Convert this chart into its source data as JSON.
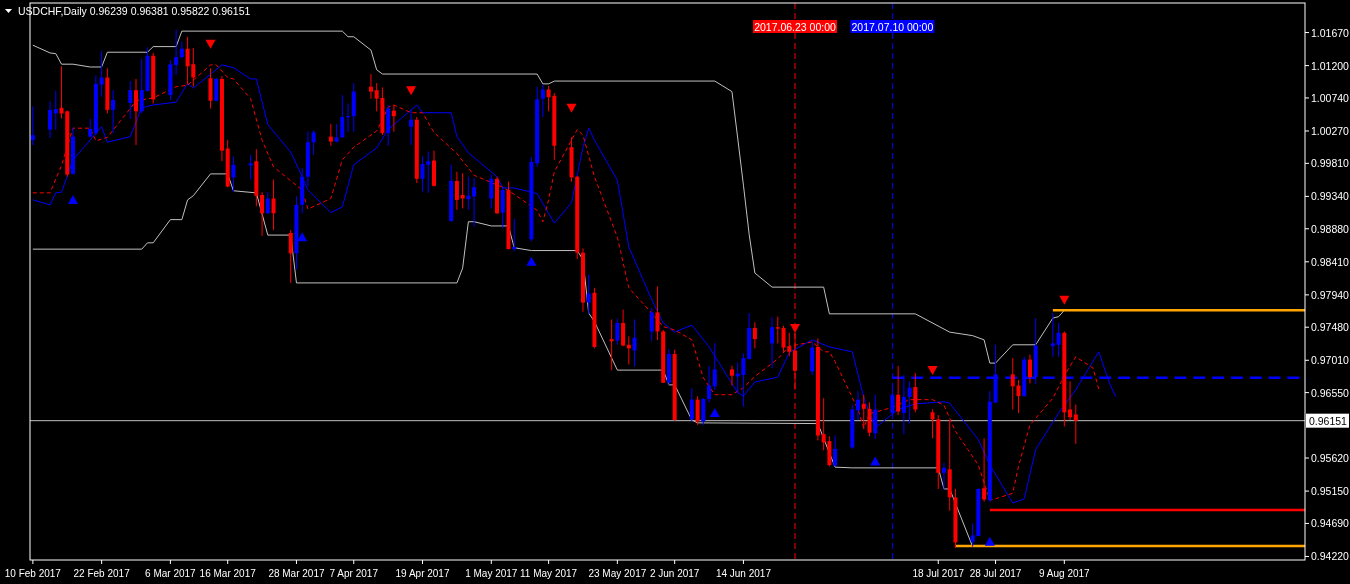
{
  "chart_data": {
    "type": "candlestick",
    "title": "USDCHF,Daily 0.96239 0.96381 0.95822 0.96151",
    "x": [
      "2017-02-10",
      "2017-02-13",
      "2017-02-14",
      "2017-02-15",
      "2017-02-16",
      "2017-02-17",
      "2017-02-20",
      "2017-02-21",
      "2017-02-22",
      "2017-02-23",
      "2017-02-24",
      "2017-02-27",
      "2017-02-28",
      "2017-03-01",
      "2017-03-02",
      "2017-03-03",
      "2017-03-06",
      "2017-03-07",
      "2017-03-08",
      "2017-03-09",
      "2017-03-10",
      "2017-03-13",
      "2017-03-14",
      "2017-03-15",
      "2017-03-16",
      "2017-03-17",
      "2017-03-20",
      "2017-03-21",
      "2017-03-22",
      "2017-03-23",
      "2017-03-24",
      "2017-03-27",
      "2017-03-28",
      "2017-03-29",
      "2017-03-30",
      "2017-03-31",
      "2017-04-03",
      "2017-04-04",
      "2017-04-05",
      "2017-04-06",
      "2017-04-07",
      "2017-04-10",
      "2017-04-11",
      "2017-04-12",
      "2017-04-13",
      "2017-04-14",
      "2017-04-17",
      "2017-04-18",
      "2017-04-19",
      "2017-04-20",
      "2017-04-21",
      "2017-04-24",
      "2017-04-25",
      "2017-04-26",
      "2017-04-27",
      "2017-04-28",
      "2017-05-01",
      "2017-05-02",
      "2017-05-03",
      "2017-05-04",
      "2017-05-05",
      "2017-05-08",
      "2017-05-09",
      "2017-05-10",
      "2017-05-11",
      "2017-05-12",
      "2017-05-15",
      "2017-05-16",
      "2017-05-17",
      "2017-05-18",
      "2017-05-19",
      "2017-05-22",
      "2017-05-23",
      "2017-05-24",
      "2017-05-25",
      "2017-05-26",
      "2017-05-29",
      "2017-05-30",
      "2017-05-31",
      "2017-06-01",
      "2017-06-02",
      "2017-06-05",
      "2017-06-06",
      "2017-06-07",
      "2017-06-08",
      "2017-06-09",
      "2017-06-12",
      "2017-06-13",
      "2017-06-14",
      "2017-06-15",
      "2017-06-16",
      "2017-06-19",
      "2017-06-20",
      "2017-06-21",
      "2017-06-22",
      "2017-06-23",
      "2017-06-26",
      "2017-06-27",
      "2017-06-28",
      "2017-06-29",
      "2017-06-30",
      "2017-07-03",
      "2017-07-04",
      "2017-07-05",
      "2017-07-06",
      "2017-07-07",
      "2017-07-10",
      "2017-07-11",
      "2017-07-12",
      "2017-07-13",
      "2017-07-14",
      "2017-07-17",
      "2017-07-18",
      "2017-07-19",
      "2017-07-20",
      "2017-07-21",
      "2017-07-24",
      "2017-07-25",
      "2017-07-26",
      "2017-07-27",
      "2017-07-28",
      "2017-07-31",
      "2017-08-01",
      "2017-08-02",
      "2017-08-03",
      "2017-08-04",
      "2017-08-07",
      "2017-08-08",
      "2017-08-09",
      "2017-08-10",
      "2017-08-11"
    ],
    "ohlc": [
      [
        1.0014,
        1.0062,
        1.0007,
        1.0021
      ],
      [
        1.0029,
        1.0069,
        1.0017,
        1.0057
      ],
      [
        1.0052,
        1.0084,
        1.0029,
        1.0058
      ],
      [
        1.006,
        1.0119,
        1.0045,
        1.0052
      ],
      [
        1.0055,
        1.0056,
        0.9962,
        0.9965
      ],
      [
        0.9966,
        1.0032,
        0.9965,
        1.0019
      ],
      [
        1.0019,
        1.0044,
        1.0018,
        1.003
      ],
      [
        1.0024,
        1.0106,
        1.0021,
        1.0094
      ],
      [
        1.0093,
        1.0141,
        1.0076,
        1.0103
      ],
      [
        1.0103,
        1.0116,
        1.0052,
        1.0057
      ],
      [
        1.0057,
        1.0085,
        1.0024,
        1.0071
      ],
      [
        1.0067,
        1.0098,
        1.0044,
        1.0085
      ],
      [
        1.0085,
        1.0101,
        1.0007,
        1.0055
      ],
      [
        1.0055,
        1.0129,
        1.0052,
        1.0085
      ],
      [
        1.0084,
        1.0146,
        1.0083,
        1.0134
      ],
      [
        1.0134,
        1.0138,
        1.0066,
        1.0072
      ],
      [
        1.0078,
        1.0128,
        1.0071,
        1.0122
      ],
      [
        1.0121,
        1.0171,
        1.0107,
        1.0132
      ],
      [
        1.0132,
        1.0154,
        1.013,
        1.0144
      ],
      [
        1.0144,
        1.0161,
        1.0093,
        1.0119
      ],
      [
        1.0122,
        1.0145,
        1.009,
        1.0103
      ],
      [
        1.0102,
        1.0116,
        1.0059,
        1.007
      ],
      [
        1.007,
        1.0103,
        1.0069,
        1.0101
      ],
      [
        1.0101,
        1.0105,
        0.9984,
        0.9999
      ],
      [
        1.0002,
        1.0014,
        0.9947,
        0.9948
      ],
      [
        0.9961,
        0.9991,
        0.994,
        0.9979
      ],
      [
        0.9978,
        0.9993,
        0.9958,
        0.9981
      ],
      [
        0.9984,
        1.0001,
        0.992,
        0.9935
      ],
      [
        0.9936,
        0.994,
        0.9878,
        0.991
      ],
      [
        0.991,
        0.994,
        0.9909,
        0.9931
      ],
      [
        0.9931,
        0.9958,
        0.9886,
        0.991
      ],
      [
        0.9882,
        0.9886,
        0.9811,
        0.9853
      ],
      [
        0.9853,
        0.9934,
        0.983,
        0.9922
      ],
      [
        0.9922,
        0.9974,
        0.991,
        0.9962
      ],
      [
        0.9962,
        1.0026,
        0.9948,
        1.0011
      ],
      [
        1.0011,
        1.0028,
        0.9993,
        1.0025
      ],
      [
        1.0019,
        1.0037,
        1.0006,
        1.0012
      ],
      [
        1.0012,
        1.0037,
        1.0011,
        1.0018
      ],
      [
        1.0018,
        1.0078,
        1.0017,
        1.0047
      ],
      [
        1.0047,
        1.0066,
        1.0026,
        1.0048
      ],
      [
        1.0048,
        1.0095,
        1.0026,
        1.0083
      ],
      [
        1.009,
        1.0108,
        1.0073,
        1.0083
      ],
      [
        1.0085,
        1.0095,
        1.0055,
        1.0073
      ],
      [
        1.0074,
        1.0089,
        1.0021,
        1.0024
      ],
      [
        1.0024,
        1.0064,
        1.0006,
        1.0059
      ],
      [
        1.0056,
        1.0064,
        1.0026,
        1.0048
      ],
      [
        1.0033,
        1.0057,
        1.0007,
        1.0043
      ],
      [
        1.0043,
        1.0047,
        0.9953,
        0.9959
      ],
      [
        0.9959,
        0.9991,
        0.9941,
        0.998
      ],
      [
        0.9979,
        0.9998,
        0.9939,
        0.9984
      ],
      [
        0.9985,
        0.9999,
        0.9948,
        0.9949
      ],
      [
        0.9899,
        0.9979,
        0.9898,
        0.9956
      ],
      [
        0.9956,
        0.9969,
        0.9915,
        0.9929
      ],
      [
        0.9936,
        0.9967,
        0.9917,
        0.9931
      ],
      [
        0.993,
        0.9962,
        0.9915,
        0.9935
      ],
      [
        0.9934,
        0.996,
        0.9891,
        0.9947
      ],
      [
        0.9931,
        0.9965,
        0.9917,
        0.9959
      ],
      [
        0.9959,
        0.9962,
        0.9909,
        0.991
      ],
      [
        0.9911,
        0.9948,
        0.9889,
        0.9943
      ],
      [
        0.9943,
        0.9955,
        0.9859,
        0.9859
      ],
      [
        0.9859,
        0.9902,
        0.9856,
        0.9862
      ],
      [
        0.9873,
        0.999,
        0.987,
        0.9983
      ],
      [
        0.9981,
        1.009,
        0.9976,
        1.0072
      ],
      [
        1.0073,
        1.0093,
        1.0047,
        1.0086
      ],
      [
        1.0086,
        1.0091,
        1.0055,
        1.0075
      ],
      [
        1.0077,
        1.0081,
        0.9986,
        1.0006
      ],
      [
        1.0004,
        1.0018,
        0.9955,
        0.9961
      ],
      [
        0.9962,
        0.9963,
        0.9845,
        0.9854
      ],
      [
        0.9854,
        0.986,
        0.977,
        0.9783
      ],
      [
        0.9783,
        0.9823,
        0.9767,
        0.9796
      ],
      [
        0.9797,
        0.9804,
        0.9718,
        0.972
      ],
      [
        0.9731,
        0.9759,
        0.9687,
        0.9728
      ],
      [
        0.9729,
        0.976,
        0.9723,
        0.9754
      ],
      [
        0.9754,
        0.9773,
        0.9721,
        0.9722
      ],
      [
        0.9723,
        0.9735,
        0.9695,
        0.9718
      ],
      [
        0.9715,
        0.9759,
        0.9692,
        0.9733
      ],
      [
        0.9742,
        0.9775,
        0.9728,
        0.9769
      ],
      [
        0.9769,
        0.9806,
        0.973,
        0.9742
      ],
      [
        0.9742,
        0.9744,
        0.9669,
        0.9669
      ],
      [
        0.9669,
        0.9717,
        0.9666,
        0.971
      ],
      [
        0.971,
        0.9716,
        0.9615,
        0.9616
      ],
      [
        0.9617,
        0.9661,
        0.9614,
        0.9645
      ],
      [
        0.9645,
        0.965,
        0.9609,
        0.9614
      ],
      [
        0.9614,
        0.9647,
        0.9609,
        0.9646
      ],
      [
        0.9646,
        0.9693,
        0.9641,
        0.9665
      ],
      [
        0.9664,
        0.9725,
        0.9659,
        0.9688
      ],
      [
        0.9688,
        0.9693,
        0.9665,
        0.9679
      ],
      [
        0.9678,
        0.9698,
        0.9654,
        0.9682
      ],
      [
        0.968,
        0.9711,
        0.9635,
        0.9704
      ],
      [
        0.9703,
        0.9768,
        0.9702,
        0.9747
      ],
      [
        0.9747,
        0.9755,
        0.9718,
        0.9731
      ],
      [
        0.9725,
        0.9762,
        0.969,
        0.9748
      ],
      [
        0.9748,
        0.9763,
        0.9725,
        0.9746
      ],
      [
        0.9747,
        0.975,
        0.9713,
        0.9719
      ],
      [
        0.9721,
        0.974,
        0.9707,
        0.9713
      ],
      [
        0.9715,
        0.974,
        0.9659,
        0.9686
      ],
      [
        0.9685,
        0.9728,
        0.968,
        0.9719
      ],
      [
        0.972,
        0.9732,
        0.9587,
        0.9594
      ],
      [
        0.9596,
        0.9647,
        0.9573,
        0.9584
      ],
      [
        0.9586,
        0.9593,
        0.955,
        0.9552
      ],
      [
        0.9551,
        0.9594,
        0.955,
        0.9575
      ],
      [
        0.9577,
        0.9638,
        0.9575,
        0.9631
      ],
      [
        0.963,
        0.9657,
        0.9616,
        0.9645
      ],
      [
        0.9639,
        0.9652,
        0.9603,
        0.9632
      ],
      [
        0.9632,
        0.9641,
        0.9593,
        0.9598
      ],
      [
        0.9597,
        0.9652,
        0.9589,
        0.9631
      ],
      [
        0.9626,
        0.9665,
        0.9623,
        0.9652
      ],
      [
        0.9652,
        0.9693,
        0.9623,
        0.9628
      ],
      [
        0.9626,
        0.968,
        0.9596,
        0.9649
      ],
      [
        0.9649,
        0.9671,
        0.9611,
        0.9662
      ],
      [
        0.9663,
        0.9683,
        0.9627,
        0.9631
      ],
      [
        0.9627,
        0.9631,
        0.959,
        0.9617
      ],
      [
        0.9617,
        0.9623,
        0.9518,
        0.9541
      ],
      [
        0.9541,
        0.9555,
        0.9517,
        0.9548
      ],
      [
        0.9546,
        0.9616,
        0.9487,
        0.9506
      ],
      [
        0.9506,
        0.9518,
        0.9434,
        0.9442
      ],
      [
        0.9443,
        0.9469,
        0.9436,
        0.9452
      ],
      [
        0.9451,
        0.9519,
        0.9451,
        0.9518
      ],
      [
        0.9519,
        0.959,
        0.95,
        0.9503
      ],
      [
        0.9502,
        0.9657,
        0.9499,
        0.9642
      ],
      [
        0.9641,
        0.9723,
        0.964,
        0.9681
      ],
      [
        0.9681,
        0.9704,
        0.9631,
        0.9664
      ],
      [
        0.9665,
        0.9673,
        0.9626,
        0.965
      ],
      [
        0.965,
        0.9706,
        0.9649,
        0.9702
      ],
      [
        0.9702,
        0.9709,
        0.9668,
        0.9677
      ],
      [
        0.9677,
        0.9761,
        0.9667,
        0.9722
      ],
      [
        0.9721,
        0.9768,
        0.9706,
        0.9725
      ],
      [
        0.9723,
        0.9754,
        0.9706,
        0.974
      ],
      [
        0.974,
        0.9742,
        0.9607,
        0.9627
      ],
      [
        0.9631,
        0.9671,
        0.9616,
        0.962
      ],
      [
        0.96239,
        0.96381,
        0.95822,
        0.96151
      ]
    ],
    "colors": [
      "#0000ff",
      "#0000ff",
      "#0000ff",
      "#ff0000",
      "#ff0000",
      "#0000ff",
      "#0000ff",
      "#0000ff",
      "#0000ff",
      "#ff0000",
      "#0000ff",
      "#0000ff",
      "#ff0000",
      "#0000ff",
      "#0000ff",
      "#ff0000",
      "#0000ff",
      "#0000ff",
      "#0000ff",
      "#ff0000",
      "#ff0000",
      "#ff0000",
      "#0000ff",
      "#ff0000",
      "#ff0000",
      "#0000ff",
      "#0000ff",
      "#ff0000",
      "#ff0000",
      "#0000ff",
      "#ff0000",
      "#ff0000",
      "#0000ff",
      "#0000ff",
      "#0000ff",
      "#0000ff",
      "#ff0000",
      "#0000ff",
      "#0000ff",
      "#0000ff",
      "#0000ff",
      "#ff0000",
      "#ff0000",
      "#ff0000",
      "#0000ff",
      "#ff0000",
      "#0000ff",
      "#ff0000",
      "#0000ff",
      "#0000ff",
      "#ff0000",
      "#0000ff",
      "#ff0000",
      "#ff0000",
      "#0000ff",
      "#0000ff",
      "#0000ff",
      "#ff0000",
      "#0000ff",
      "#ff0000",
      "#0000ff",
      "#0000ff",
      "#0000ff",
      "#0000ff",
      "#ff0000",
      "#ff0000",
      "#ff0000",
      "#ff0000",
      "#ff0000",
      "#0000ff",
      "#ff0000",
      "#ff0000",
      "#0000ff",
      "#ff0000",
      "#ff0000",
      "#0000ff",
      "#0000ff",
      "#ff0000",
      "#ff0000",
      "#0000ff",
      "#ff0000",
      "#0000ff",
      "#ff0000",
      "#0000ff",
      "#0000ff",
      "#0000ff",
      "#ff0000",
      "#0000ff",
      "#0000ff",
      "#0000ff",
      "#ff0000",
      "#0000ff",
      "#ff0000",
      "#ff0000",
      "#ff0000",
      "#ff0000",
      "#0000ff",
      "#ff0000",
      "#ff0000",
      "#ff0000",
      "#0000ff",
      "#0000ff",
      "#0000ff",
      "#ff0000",
      "#ff0000",
      "#0000ff",
      "#0000ff",
      "#ff0000",
      "#0000ff",
      "#0000ff",
      "#ff0000",
      "#ff0000",
      "#ff0000",
      "#0000ff",
      "#ff0000",
      "#ff0000",
      "#0000ff",
      "#0000ff",
      "#ff0000",
      "#0000ff",
      "#0000ff",
      "#ff0000",
      "#ff0000",
      "#0000ff",
      "#ff0000",
      "#0000ff",
      "#0000ff",
      "#0000ff",
      "#ff0000",
      "#ff0000",
      "#ff0000"
    ],
    "series": [
      {
        "type": "line",
        "color": "#c0c0c0",
        "x": [
          "2017-02-10",
          "2017-02-13",
          "2017-02-14",
          "2017-02-15",
          "2017-02-17",
          "2017-02-20",
          "2017-02-22",
          "2017-02-23",
          "2017-03-02",
          "2017-03-03",
          "2017-03-07",
          "2017-03-08",
          "2017-04-05",
          "2017-04-06",
          "2017-04-07",
          "2017-04-10",
          "2017-04-11",
          "2017-04-12",
          "2017-05-09",
          "2017-05-10",
          "2017-05-11",
          "2017-05-12",
          "2017-06-09",
          "2017-06-12",
          "2017-06-13",
          "2017-06-14",
          "2017-06-15",
          "2017-06-16",
          "2017-06-19",
          "2017-06-28",
          "2017-06-29",
          "2017-07-14",
          "2017-07-20",
          "2017-07-24",
          "2017-07-26",
          "2017-07-27",
          "2017-07-28",
          "2017-07-31",
          "2017-08-04",
          "2017-08-07",
          "2017-08-08",
          "2017-08-09"
        ],
        "values": [
          1.0149,
          1.0138,
          1.0137,
          1.0122,
          1.0122,
          1.0118,
          1.0118,
          1.0139,
          1.0139,
          1.0147,
          1.0147,
          1.0169,
          1.0169,
          1.0161,
          1.0161,
          1.0142,
          1.0114,
          1.0108,
          1.0108,
          1.0094,
          1.0094,
          1.0098,
          1.0098,
          1.0083,
          1.0017,
          0.995,
          0.988,
          0.9825,
          0.9805,
          0.9805,
          0.9767,
          0.9767,
          0.9741,
          0.9736,
          0.973,
          0.9697,
          0.9697,
          0.9723,
          0.9723,
          0.9761,
          0.9763,
          0.9772
        ]
      },
      {
        "type": "line",
        "color": "#c0c0c0",
        "x": [
          "2017-02-10",
          "2017-03-01",
          "2017-03-02",
          "2017-03-03",
          "2017-03-06",
          "2017-03-08",
          "2017-03-09",
          "2017-03-10",
          "2017-03-13",
          "2017-03-16",
          "2017-03-17",
          "2017-03-21",
          "2017-03-23",
          "2017-03-27",
          "2017-03-28",
          "2017-04-25",
          "2017-04-26",
          "2017-04-27",
          "2017-04-28",
          "2017-05-01",
          "2017-05-04",
          "2017-05-05",
          "2017-05-08",
          "2017-05-16",
          "2017-05-17",
          "2017-05-18",
          "2017-05-19",
          "2017-05-23",
          "2017-05-31",
          "2017-06-01",
          "2017-06-02",
          "2017-06-05",
          "2017-06-06",
          "2017-06-27",
          "2017-06-28",
          "2017-06-30",
          "2017-07-03",
          "2017-07-18",
          "2017-07-19",
          "2017-07-20",
          "2017-07-24"
        ],
        "values": [
          0.9859,
          0.9859,
          0.9868,
          0.9868,
          0.9901,
          0.9901,
          0.9929,
          0.9935,
          0.9966,
          0.9966,
          0.9942,
          0.9939,
          0.9879,
          0.9879,
          0.9811,
          0.9811,
          0.9832,
          0.9898,
          0.9898,
          0.9892,
          0.9892,
          0.9861,
          0.9857,
          0.9857,
          0.9844,
          0.9768,
          0.9756,
          0.9687,
          0.9687,
          0.9666,
          0.9666,
          0.9616,
          0.9612,
          0.9611,
          0.959,
          0.9549,
          0.9548,
          0.9548,
          0.9518,
          0.9518,
          0.9436
        ]
      },
      {
        "type": "line",
        "color": "#0000ff",
        "x": [
          "2017-02-10",
          "2017-02-13",
          "2017-02-14",
          "2017-02-15",
          "2017-02-17",
          "2017-02-22",
          "2017-02-23",
          "2017-02-27",
          "2017-03-01",
          "2017-03-03",
          "2017-03-07",
          "2017-03-09",
          "2017-03-10",
          "2017-03-15",
          "2017-03-17",
          "2017-03-20",
          "2017-03-21",
          "2017-03-23",
          "2017-03-27",
          "2017-03-29",
          "2017-03-30",
          "2017-04-03",
          "2017-04-05",
          "2017-04-07",
          "2017-04-11",
          "2017-04-13",
          "2017-04-18",
          "2017-04-19",
          "2017-04-24",
          "2017-04-25",
          "2017-04-27",
          "2017-05-02",
          "2017-05-03",
          "2017-05-05",
          "2017-05-09",
          "2017-05-12",
          "2017-05-15",
          "2017-05-17",
          "2017-05-18",
          "2017-05-19",
          "2017-05-23",
          "2017-05-25",
          "2017-05-29",
          "2017-05-31",
          "2017-06-02",
          "2017-06-05",
          "2017-06-08",
          "2017-06-13",
          "2017-06-14",
          "2017-06-16",
          "2017-06-20",
          "2017-06-22",
          "2017-06-26",
          "2017-06-29",
          "2017-07-03",
          "2017-07-05",
          "2017-07-07",
          "2017-07-11",
          "2017-07-14",
          "2017-07-19",
          "2017-07-20",
          "2017-07-25",
          "2017-07-27",
          "2017-07-31",
          "2017-08-02",
          "2017-08-04",
          "2017-08-08",
          "2017-08-11",
          "2017-08-15",
          "2017-08-17",
          "2017-08-18"
        ],
        "values": [
          0.9929,
          0.9922,
          0.9939,
          0.994,
          0.9986,
          1.0033,
          1.0011,
          1.0019,
          1.006,
          1.0064,
          1.0068,
          1.0095,
          1.0088,
          1.0121,
          1.0117,
          1.0101,
          1.0101,
          1.0036,
          0.9997,
          0.9962,
          0.9943,
          0.9911,
          0.9919,
          0.9979,
          1.0003,
          1.0029,
          1.0064,
          1.0053,
          1.0053,
          1.0019,
          0.9996,
          0.9962,
          0.9946,
          0.9946,
          0.9938,
          0.9896,
          0.9925,
          1.0004,
          1.0031,
          1.0014,
          0.9957,
          0.9862,
          0.9787,
          0.9754,
          0.9741,
          0.9751,
          0.972,
          0.9655,
          0.965,
          0.967,
          0.9677,
          0.9712,
          0.973,
          0.972,
          0.9713,
          0.9648,
          0.9605,
          0.9631,
          0.9639,
          0.9642,
          0.964,
          0.9588,
          0.9552,
          0.9498,
          0.9504,
          0.9574,
          0.9626,
          0.9659,
          0.9713,
          0.9666,
          0.9649
        ]
      },
      {
        "type": "line",
        "color": "#ff0000",
        "line_style": "dashed",
        "x": [
          "2017-02-10",
          "2017-02-13",
          "2017-02-15",
          "2017-02-17",
          "2017-02-20",
          "2017-02-21",
          "2017-02-23",
          "2017-02-27",
          "2017-02-28",
          "2017-03-03",
          "2017-03-07",
          "2017-03-09",
          "2017-03-13",
          "2017-03-14",
          "2017-03-16",
          "2017-03-17",
          "2017-03-20",
          "2017-03-22",
          "2017-03-24",
          "2017-03-29",
          "2017-03-30",
          "2017-04-03",
          "2017-04-05",
          "2017-04-07",
          "2017-04-11",
          "2017-04-12",
          "2017-04-13",
          "2017-04-14",
          "2017-04-17",
          "2017-04-19",
          "2017-04-21",
          "2017-04-25",
          "2017-04-28",
          "2017-05-03",
          "2017-05-05",
          "2017-05-09",
          "2017-05-10",
          "2017-05-11",
          "2017-05-12",
          "2017-05-16",
          "2017-05-17",
          "2017-05-19",
          "2017-05-23",
          "2017-05-25",
          "2017-05-29",
          "2017-05-31",
          "2017-06-02",
          "2017-06-05",
          "2017-06-07",
          "2017-06-09",
          "2017-06-12",
          "2017-06-14",
          "2017-06-16",
          "2017-06-20",
          "2017-06-22",
          "2017-06-26",
          "2017-06-28",
          "2017-06-29",
          "2017-06-30",
          "2017-07-04",
          "2017-07-05",
          "2017-07-06",
          "2017-07-10",
          "2017-07-13",
          "2017-07-17",
          "2017-07-19",
          "2017-07-21",
          "2017-07-25",
          "2017-07-27",
          "2017-07-28",
          "2017-07-31",
          "2017-08-01",
          "2017-08-03",
          "2017-08-07",
          "2017-08-09",
          "2017-08-11",
          "2017-08-14",
          "2017-08-15"
        ],
        "values": [
          0.9939,
          0.9939,
          0.9978,
          1.0031,
          1.0031,
          1.0013,
          1.0018,
          1.0059,
          1.007,
          1.0074,
          1.009,
          1.0092,
          1.0121,
          1.0121,
          1.0103,
          1.0101,
          1.0073,
          1.0014,
          0.9976,
          0.9943,
          0.9916,
          0.9931,
          0.9986,
          1.0004,
          1.0027,
          1.0043,
          1.0061,
          1.0064,
          1.0053,
          1.0053,
          1.0025,
          0.9995,
          0.9964,
          0.9947,
          0.9937,
          0.9914,
          0.9898,
          0.9929,
          0.9969,
          1.0029,
          1.0021,
          0.9962,
          0.9876,
          0.9804,
          0.9768,
          0.9749,
          0.9744,
          0.973,
          0.9676,
          0.9652,
          0.9652,
          0.9662,
          0.9678,
          0.9703,
          0.9721,
          0.9727,
          0.9713,
          0.9713,
          0.9699,
          0.9631,
          0.9605,
          0.9625,
          0.9634,
          0.9645,
          0.9645,
          0.9637,
          0.96,
          0.9552,
          0.9502,
          0.9504,
          0.9512,
          0.955,
          0.9609,
          0.9647,
          0.9679,
          0.9706,
          0.969,
          0.966
        ]
      },
      {
        "type": "line",
        "color": "#ffa500",
        "x": [
          "2017-08-07",
          "2017-09-20"
        ],
        "values": [
          0.9772,
          0.9772
        ]
      },
      {
        "type": "line",
        "color": "#ffa500",
        "x": [
          "2017-07-21",
          "2017-09-20"
        ],
        "values": [
          0.9437,
          0.9437
        ]
      },
      {
        "type": "line",
        "color": "#ff0000",
        "x": [
          "2017-07-27",
          "2017-09-20"
        ],
        "values": [
          0.9488,
          0.9488
        ]
      },
      {
        "type": "line",
        "color": "#0000ff",
        "line_style": "dashed",
        "x": [
          "2017-07-10",
          "2017-09-19"
        ],
        "values": [
          0.9676,
          0.9676
        ]
      },
      {
        "type": "scatter",
        "marker": "triangle",
        "color": "#ff0000",
        "x": [
          "2017-03-13",
          "2017-04-17",
          "2017-05-15",
          "2017-06-23",
          "2017-07-17",
          "2017-08-09"
        ],
        "values": [
          1.0151,
          1.0085,
          1.006,
          0.9747,
          0.9687,
          0.9787
        ]
      },
      {
        "type": "scatter",
        "marker": "triangle",
        "color": "#0000ff",
        "x": [
          "2017-02-17",
          "2017-03-29",
          "2017-05-08",
          "2017-06-09",
          "2017-07-07",
          "2017-07-27"
        ],
        "values": [
          0.9929,
          0.9876,
          0.9841,
          0.9626,
          0.9557,
          0.9443
        ]
      }
    ],
    "xlim": [
      "2017-02-09T12:00",
      "2017-09-20"
    ],
    "xticks": [
      {
        "value": "2017-02-10",
        "label": "10 Feb 2017"
      },
      {
        "value": "2017-02-22",
        "label": "22 Feb 2017"
      },
      {
        "value": "2017-03-06",
        "label": "6 Mar 2017"
      },
      {
        "value": "2017-03-16",
        "label": "16 Mar 2017"
      },
      {
        "value": "2017-03-28",
        "label": "28 Mar 2017"
      },
      {
        "value": "2017-04-07",
        "label": "7 Apr 2017"
      },
      {
        "value": "2017-04-19",
        "label": "19 Apr 2017"
      },
      {
        "value": "2017-05-01",
        "label": "1 May 2017"
      },
      {
        "value": "2017-05-11",
        "label": "11 May 2017"
      },
      {
        "value": "2017-05-23",
        "label": "23 May 2017"
      },
      {
        "value": "2017-06-02",
        "label": "2 Jun 2017"
      },
      {
        "value": "2017-06-14",
        "label": "14 Jun 2017"
      },
      {
        "value": "2017-07-18",
        "label": "18 Jul 2017"
      },
      {
        "value": "2017-07-28",
        "label": "28 Jul 2017"
      },
      {
        "value": "2017-08-09",
        "label": "9 Aug 2017"
      }
    ],
    "ylim": [
      0.9417,
      1.0209
    ],
    "yticks": [
      {
        "value": 1.0167,
        "label": "1.01670"
      },
      {
        "value": 1.012,
        "label": "1.01200"
      },
      {
        "value": 1.0074,
        "label": "1.00740"
      },
      {
        "value": 1.0027,
        "label": "1.00270"
      },
      {
        "value": 0.9981,
        "label": "0.99810"
      },
      {
        "value": 0.9934,
        "label": "0.99340"
      },
      {
        "value": 0.9888,
        "label": "0.98880"
      },
      {
        "value": 0.9841,
        "label": "0.98410"
      },
      {
        "value": 0.9794,
        "label": "0.97940"
      },
      {
        "value": 0.9748,
        "label": "0.97480"
      },
      {
        "value": 0.9701,
        "label": "0.97010"
      },
      {
        "value": 0.9655,
        "label": "0.96550"
      },
      {
        "value": 0.9562,
        "label": "0.95620"
      },
      {
        "value": 0.9515,
        "label": "0.95150"
      },
      {
        "value": 0.9469,
        "label": "0.94690"
      },
      {
        "value": 0.9422,
        "label": "0.94220"
      }
    ],
    "ref_lines": [
      {
        "axis": "y",
        "value": 0.96151,
        "label": "0.96151",
        "color": "#c0c0c0"
      },
      {
        "axis": "x",
        "value": "2017-06-23",
        "label": "2017.06.23 00:00",
        "color": "#ff0000",
        "line_style": "dashed"
      },
      {
        "axis": "x",
        "value": "2017-07-10",
        "label": "2017.07.10 00:00",
        "color": "#0000ff",
        "line_style": "dashed"
      }
    ],
    "grid": false
  }
}
